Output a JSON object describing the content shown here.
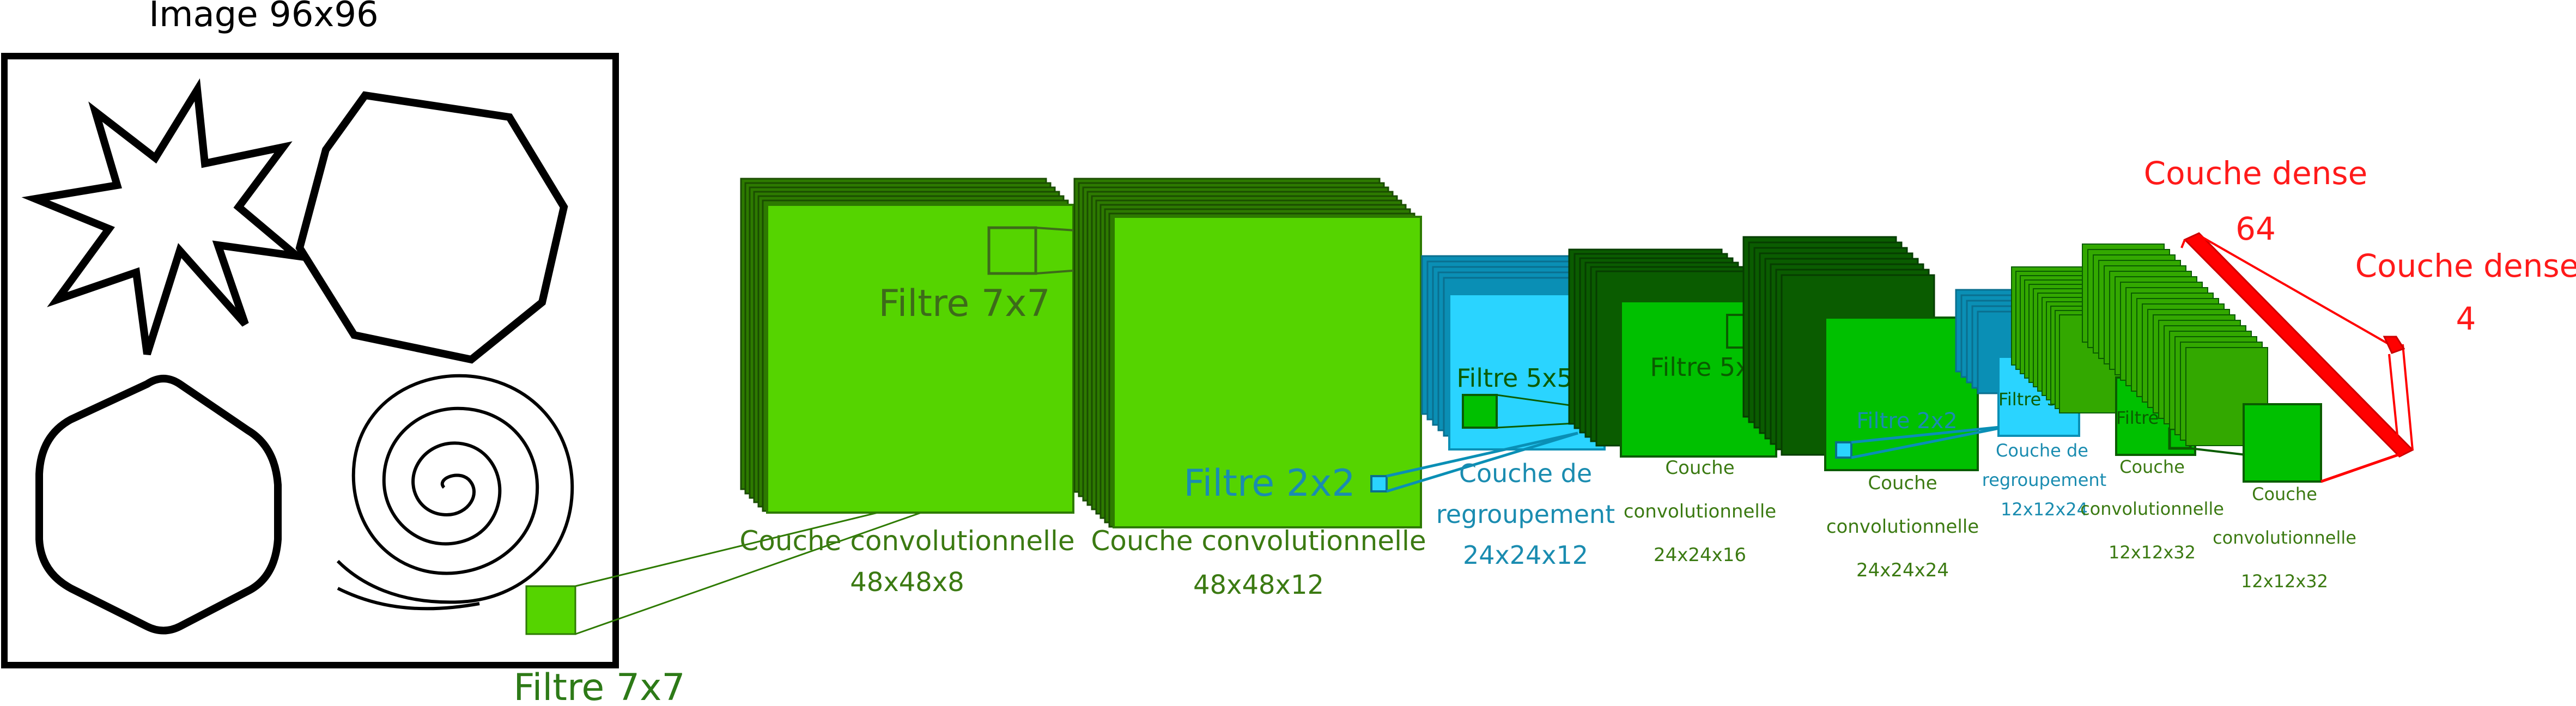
{
  "title": "Image 96x96",
  "input_filter": "Filtre 7x7",
  "layers": [
    {
      "id": "conv1",
      "name": "Couche convolutionnelle",
      "dims": "48x48x8",
      "filter": "Filtre 7x7"
    },
    {
      "id": "conv2",
      "name": "Couche convolutionnelle",
      "dims": "48x48x12",
      "filter": "Filtre 2x2"
    },
    {
      "id": "pool1",
      "name_l1": "Couche de",
      "name_l2": "regroupement",
      "dims": "24x24x12",
      "filter": "Filtre 5x5"
    },
    {
      "id": "conv3",
      "name": "Couche",
      "name_l2": "convolutionnelle",
      "dims": "24x24x16",
      "filter": "Filtre 5x5"
    },
    {
      "id": "conv4",
      "name": "Couche",
      "name_l2": "convolutionnelle",
      "dims": "24x24x24",
      "filter": "Filtre 2x2"
    },
    {
      "id": "pool2",
      "name_l1": "Couche de",
      "name_l2": "regroupement",
      "dims": "12x12x24",
      "filter": "Filtre 3x3"
    },
    {
      "id": "conv5",
      "name": "Couche",
      "name_l2": "convolutionnelle",
      "dims": "12x12x32",
      "filter": "Filtre 3x3"
    },
    {
      "id": "conv6",
      "name": "Couche",
      "name_l2": "convolutionnelle",
      "dims": "12x12x32"
    }
  ],
  "dense1": {
    "name": "Couche dense",
    "units": "64"
  },
  "dense2": {
    "name": "Couche dense",
    "units": "4"
  },
  "colors": {
    "conv": "#55d400",
    "conv_dark": "#2d7a00",
    "conv_deep": "#0a5c00",
    "pool": "#2ad4ff",
    "pool_dark": "#0a8fb5",
    "dense": "#ff0000",
    "green_text": "#3b7a12",
    "blue_text": "#1a8cb0",
    "red_text": "#ff1a1a"
  }
}
